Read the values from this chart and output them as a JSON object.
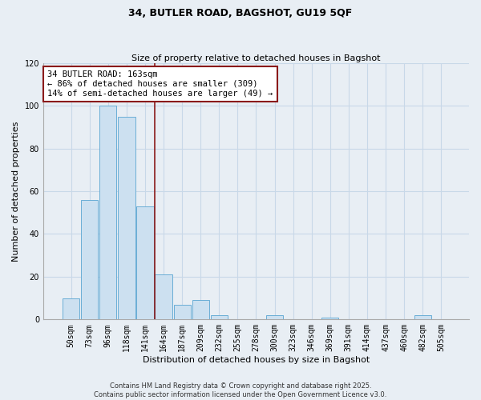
{
  "title": "34, BUTLER ROAD, BAGSHOT, GU19 5QF",
  "subtitle": "Size of property relative to detached houses in Bagshot",
  "xlabel": "Distribution of detached houses by size in Bagshot",
  "ylabel": "Number of detached properties",
  "bar_color": "#cce0f0",
  "bar_edge_color": "#6aaed6",
  "bin_labels": [
    "50sqm",
    "73sqm",
    "96sqm",
    "118sqm",
    "141sqm",
    "164sqm",
    "187sqm",
    "209sqm",
    "232sqm",
    "255sqm",
    "278sqm",
    "300sqm",
    "323sqm",
    "346sqm",
    "369sqm",
    "391sqm",
    "414sqm",
    "437sqm",
    "460sqm",
    "482sqm",
    "505sqm"
  ],
  "bar_heights": [
    10,
    56,
    100,
    95,
    53,
    21,
    7,
    9,
    2,
    0,
    0,
    2,
    0,
    0,
    1,
    0,
    0,
    0,
    0,
    2,
    0
  ],
  "vline_x_index": 4.5,
  "vline_color": "#8b1a1a",
  "annotation_text": "34 BUTLER ROAD: 163sqm\n← 86% of detached houses are smaller (309)\n14% of semi-detached houses are larger (49) →",
  "annotation_fontsize": 7.5,
  "box_facecolor": "white",
  "box_edgecolor": "#8b1a1a",
  "ylim": [
    0,
    120
  ],
  "yticks": [
    0,
    20,
    40,
    60,
    80,
    100,
    120
  ],
  "grid_color": "#c8d8e8",
  "background_color": "#e8eef4",
  "title_fontsize": 9,
  "subtitle_fontsize": 8,
  "xlabel_fontsize": 8,
  "ylabel_fontsize": 8,
  "tick_fontsize": 7,
  "footer_line1": "Contains HM Land Registry data © Crown copyright and database right 2025.",
  "footer_line2": "Contains public sector information licensed under the Open Government Licence v3.0.",
  "footer_fontsize": 6
}
